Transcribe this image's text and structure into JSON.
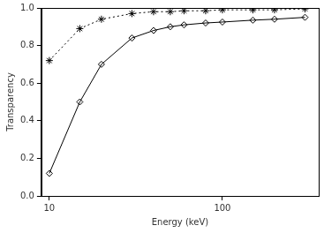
{
  "chart_data": {
    "type": "line",
    "x_label": "Energy (keV)",
    "y_label": "Transparency",
    "x": [
      10,
      15,
      20,
      30,
      40,
      50,
      60,
      80,
      100,
      150,
      200,
      300
    ],
    "series": [
      {
        "color": "#000000",
        "marker": "star",
        "line_style": "dotted",
        "values": [
          0.72,
          0.89,
          0.94,
          0.97,
          0.98,
          0.98,
          0.985,
          0.985,
          0.99,
          0.99,
          0.99,
          0.995
        ]
      },
      {
        "color": "#000000",
        "marker": "diamond",
        "line_style": "solid",
        "values": [
          0.12,
          0.5,
          0.7,
          0.84,
          0.88,
          0.9,
          0.91,
          0.92,
          0.925,
          0.935,
          0.94,
          0.95
        ]
      }
    ],
    "log": "x",
    "xlim": [
      9,
      360
    ],
    "xticks": [
      10,
      100
    ],
    "ylim": [
      0,
      1
    ],
    "yticks": [
      {
        "value": 0,
        "label": "0.0"
      },
      {
        "value": 0.2,
        "label": "0.2"
      },
      {
        "value": 0.4,
        "label": "0.4"
      },
      {
        "value": 0.6,
        "label": "0.6"
      },
      {
        "value": 0.8,
        "label": "0.8"
      },
      {
        "value": 1,
        "label": "1.0"
      }
    ],
    "grid": false
  }
}
